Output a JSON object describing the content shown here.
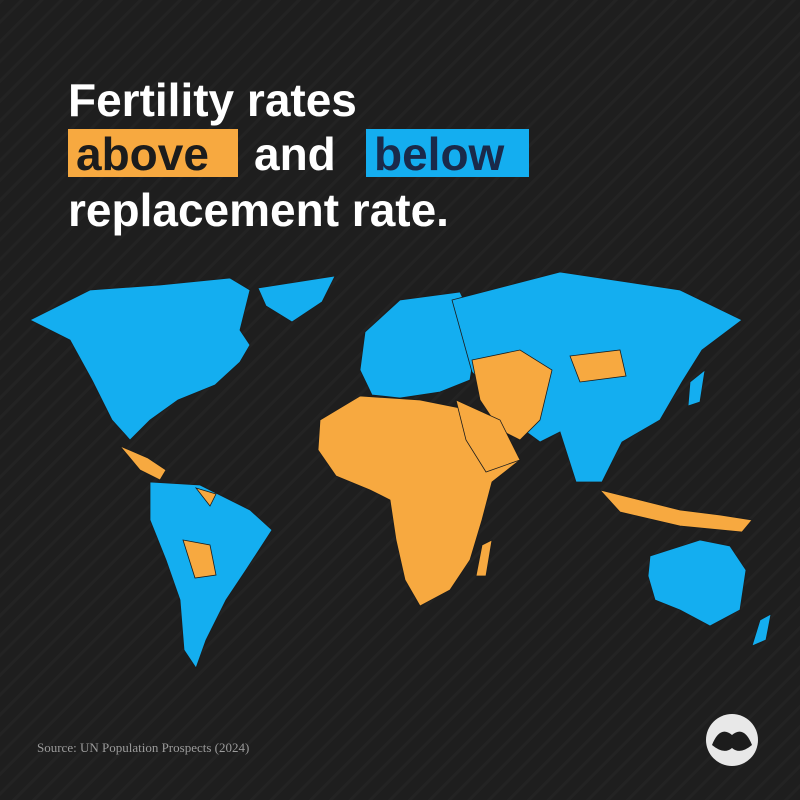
{
  "title": {
    "line1": "Fertility rates",
    "above": "above",
    "and": "and",
    "below": "below",
    "line3": "replacement rate."
  },
  "colors": {
    "above": "#f7a940",
    "below": "#14aef0"
  },
  "source": "Source: UN Population Prospects (2024)"
}
